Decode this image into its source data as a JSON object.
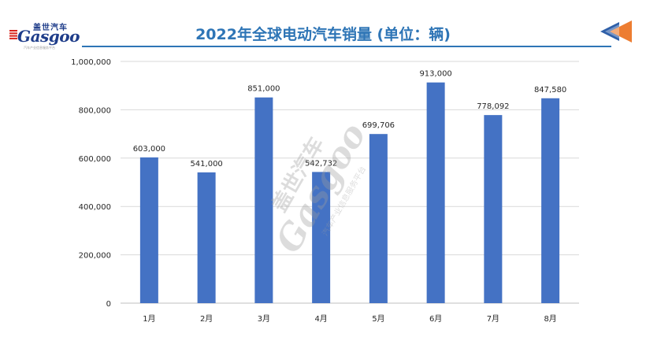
{
  "logo": {
    "cn": "盖世汽车",
    "en": "Gasgoo",
    "sub": "汽车产业信息服务平台"
  },
  "title": "2022年全球电动汽车销量 (单位：辆)",
  "colors": {
    "bar": "#4472c4",
    "title": "#2e75b6",
    "grid": "#d9d9d9",
    "text": "#262626",
    "arrow_blue": "#2e5fa8",
    "arrow_orange": "#ed7d31"
  },
  "chart_data": {
    "type": "bar",
    "categories": [
      "1月",
      "2月",
      "3月",
      "4月",
      "5月",
      "6月",
      "7月",
      "8月"
    ],
    "values": [
      603000,
      541000,
      851000,
      542732,
      699706,
      913000,
      778092,
      847580
    ],
    "value_labels": [
      "603,000",
      "541,000",
      "851,000",
      "542,732",
      "699,706",
      "913,000",
      "778,092",
      "847,580"
    ],
    "y_ticks": [
      0,
      200000,
      400000,
      600000,
      800000,
      1000000
    ],
    "y_tick_labels": [
      "0",
      "200,000",
      "400,000",
      "600,000",
      "800,000",
      "1,000,000"
    ],
    "ylim": [
      0,
      1000000
    ],
    "grid": true,
    "title": "2022年全球电动汽车销量 (单位：辆)",
    "xlabel": "",
    "ylabel": ""
  },
  "watermark": {
    "cn": "盖世汽车",
    "en": "Gasgoo",
    "sub": "汽车产业信息服务平台"
  }
}
